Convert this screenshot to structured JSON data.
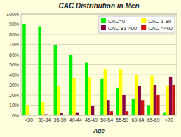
{
  "chart_data": {
    "type": "bar",
    "title": "CAC Distribution in Men",
    "x_label": "Age",
    "categories": [
      "<30",
      "30-34",
      "35-39",
      "40-44",
      "45-49",
      "50-54",
      "55-59",
      "60-64",
      "65-69",
      ">70"
    ],
    "series": [
      {
        "name": "CAC=0",
        "color": "#00ee00",
        "values": [
          90,
          88,
          69,
          60,
          52,
          36,
          27,
          16,
          10,
          3
        ]
      },
      {
        "name": "CAC 1-80",
        "color": "#ffff00",
        "values": [
          10,
          13,
          29,
          37,
          38,
          46,
          46,
          40,
          39,
          29
        ]
      },
      {
        "name": "CAC 81-400",
        "color": "#880044",
        "values": [
          0,
          1,
          2,
          3,
          9,
          15,
          20,
          29,
          30,
          38
        ]
      },
      {
        "name": "CAC >400",
        "color": "#cc1111",
        "values": [
          0,
          0,
          0,
          0,
          0,
          4,
          4,
          15,
          20,
          30
        ]
      }
    ],
    "ylim": [
      0,
      100
    ],
    "yticks": [
      {
        "value": 0,
        "label": "0%"
      },
      {
        "value": 10,
        "label": "10%"
      },
      {
        "value": 20,
        "label": "20%"
      },
      {
        "value": 30,
        "label": "30%"
      },
      {
        "value": 40,
        "label": "40%"
      },
      {
        "value": 50,
        "label": "50%"
      },
      {
        "value": 60,
        "label": "60%"
      },
      {
        "value": 70,
        "label": "70%"
      },
      {
        "value": 80,
        "label": "80%"
      },
      {
        "value": 90,
        "label": "90%"
      },
      {
        "value": 100,
        "label": "100%"
      }
    ],
    "grid": true,
    "legend": "upper right"
  }
}
